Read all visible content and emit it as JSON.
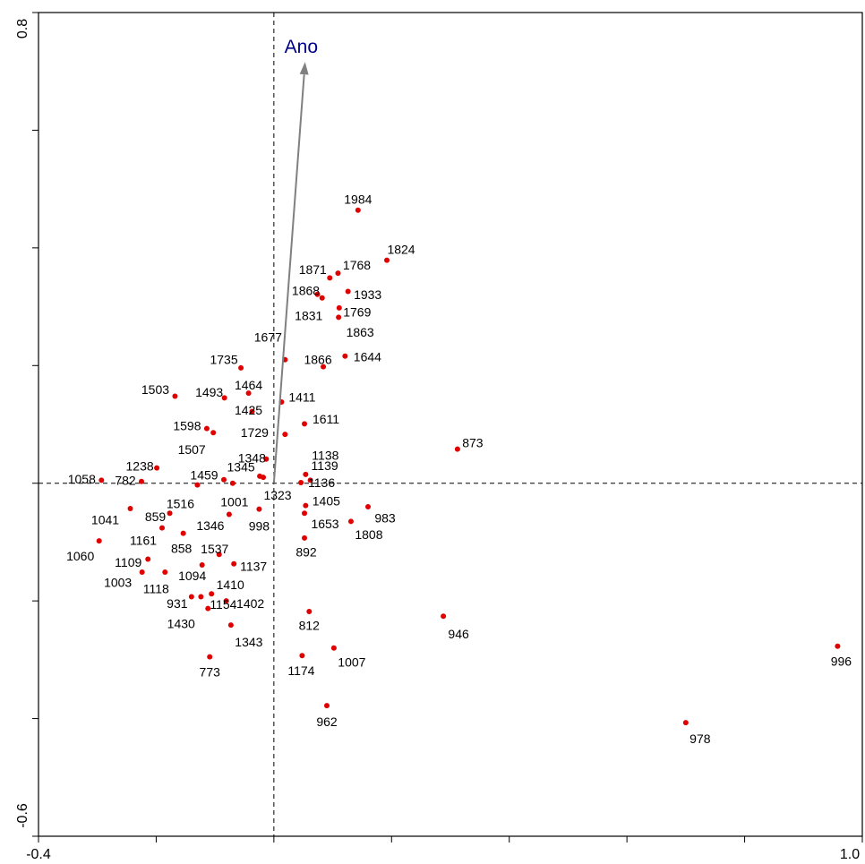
{
  "chart_data": {
    "type": "scatter",
    "title": "",
    "xlabel": "",
    "ylabel": "",
    "xlim": [
      -0.4,
      1.0
    ],
    "ylim": [
      -0.6,
      0.8
    ],
    "x_tick_labels": [
      "-0.4",
      "1.0"
    ],
    "y_tick_labels": [
      "-0.6",
      "0.8"
    ],
    "x_ticks": [
      -0.4,
      -0.2,
      0.0,
      0.2,
      0.4,
      0.6,
      0.8,
      1.0
    ],
    "y_ticks": [
      -0.6,
      -0.4,
      -0.2,
      0.0,
      0.2,
      0.4,
      0.6,
      0.8
    ],
    "grid": false,
    "reference_lines": {
      "x": 0.0,
      "y": 0.0,
      "style": "dashed"
    },
    "point_color": "#e00000",
    "arrow_color": "#808080",
    "arrow_label_color": "#00008b",
    "arrow": {
      "label": "Ano",
      "x": 0.053,
      "y": 0.716
    },
    "points": [
      {
        "label": "1984",
        "x": 0.143,
        "y": 0.464
      },
      {
        "label": "1824",
        "x": 0.192,
        "y": 0.379
      },
      {
        "label": "1768",
        "x": 0.109,
        "y": 0.357
      },
      {
        "label": "1871",
        "x": 0.095,
        "y": 0.349
      },
      {
        "label": "1868",
        "x": 0.074,
        "y": 0.321
      },
      {
        "label": "1933",
        "x": 0.126,
        "y": 0.326
      },
      {
        "label": "1831",
        "x": 0.082,
        "y": 0.315
      },
      {
        "label": "1769",
        "x": 0.111,
        "y": 0.298
      },
      {
        "label": "1863",
        "x": 0.11,
        "y": 0.282
      },
      {
        "label": "1677",
        "x": 0.019,
        "y": 0.21
      },
      {
        "label": "1644",
        "x": 0.121,
        "y": 0.216
      },
      {
        "label": "1866",
        "x": 0.084,
        "y": 0.198
      },
      {
        "label": "1735",
        "x": -0.056,
        "y": 0.196
      },
      {
        "label": "1493",
        "x": -0.084,
        "y": 0.145
      },
      {
        "label": "1464",
        "x": -0.043,
        "y": 0.153
      },
      {
        "label": "1503",
        "x": -0.168,
        "y": 0.148
      },
      {
        "label": "1411",
        "x": 0.013,
        "y": 0.138
      },
      {
        "label": "1425",
        "x": -0.037,
        "y": 0.122
      },
      {
        "label": "1611",
        "x": 0.052,
        "y": 0.101
      },
      {
        "label": "1598",
        "x": -0.114,
        "y": 0.093
      },
      {
        "label": "1507",
        "x": -0.103,
        "y": 0.086
      },
      {
        "label": "1729",
        "x": 0.019,
        "y": 0.083
      },
      {
        "label": "873",
        "x": 0.312,
        "y": 0.058
      },
      {
        "label": "1348",
        "x": -0.013,
        "y": 0.041
      },
      {
        "label": "1238",
        "x": -0.199,
        "y": 0.026
      },
      {
        "label": "1138",
        "x": 0.054,
        "y": 0.015
      },
      {
        "label": "1139",
        "x": 0.062,
        "y": 0.005
      },
      {
        "label": "1345",
        "x": -0.024,
        "y": 0.012
      },
      {
        "label": "1136",
        "x": 0.046,
        "y": 0.001
      },
      {
        "label": "1058",
        "x": -0.293,
        "y": 0.005
      },
      {
        "label": "782",
        "x": -0.225,
        "y": 0.003
      },
      {
        "label": "1459",
        "x": -0.085,
        "y": 0.006
      },
      {
        "label": "1516",
        "x": -0.13,
        "y": -0.003
      },
      {
        "label": "1001",
        "x": -0.07,
        "y": 0.0
      },
      {
        "label": "1323",
        "x": -0.018,
        "y": 0.01
      },
      {
        "label": "1405",
        "x": 0.054,
        "y": -0.038
      },
      {
        "label": "983",
        "x": 0.16,
        "y": -0.04
      },
      {
        "label": "1653",
        "x": 0.052,
        "y": -0.051
      },
      {
        "label": "1808",
        "x": 0.131,
        "y": -0.065
      },
      {
        "label": "998",
        "x": -0.025,
        "y": -0.044
      },
      {
        "label": "1346",
        "x": -0.076,
        "y": -0.053
      },
      {
        "label": "1041",
        "x": -0.244,
        "y": -0.043
      },
      {
        "label": "859",
        "x": -0.177,
        "y": -0.051
      },
      {
        "label": "1161",
        "x": -0.19,
        "y": -0.076
      },
      {
        "label": "858",
        "x": -0.154,
        "y": -0.085
      },
      {
        "label": "892",
        "x": 0.052,
        "y": -0.093
      },
      {
        "label": "1537",
        "x": -0.093,
        "y": -0.121
      },
      {
        "label": "1060",
        "x": -0.297,
        "y": -0.098
      },
      {
        "label": "1109",
        "x": -0.214,
        "y": -0.129
      },
      {
        "label": "1137",
        "x": -0.068,
        "y": -0.137
      },
      {
        "label": "1094",
        "x": -0.122,
        "y": -0.139
      },
      {
        "label": "1003",
        "x": -0.224,
        "y": -0.151
      },
      {
        "label": "1118",
        "x": -0.185,
        "y": -0.151
      },
      {
        "label": "1410",
        "x": -0.106,
        "y": -0.188
      },
      {
        "label": "931",
        "x": -0.14,
        "y": -0.193
      },
      {
        "label": "1402",
        "x": -0.081,
        "y": -0.2
      },
      {
        "label": "1154",
        "x": -0.124,
        "y": -0.193
      },
      {
        "label": "1430",
        "x": -0.112,
        "y": -0.213
      },
      {
        "label": "812",
        "x": 0.06,
        "y": -0.218
      },
      {
        "label": "946",
        "x": 0.288,
        "y": -0.226
      },
      {
        "label": "1343",
        "x": -0.073,
        "y": -0.241
      },
      {
        "label": "773",
        "x": -0.109,
        "y": -0.295
      },
      {
        "label": "1174",
        "x": 0.048,
        "y": -0.293
      },
      {
        "label": "1007",
        "x": 0.102,
        "y": -0.28
      },
      {
        "label": "996",
        "x": 0.958,
        "y": -0.277
      },
      {
        "label": "962",
        "x": 0.09,
        "y": -0.378
      },
      {
        "label": "978",
        "x": 0.7,
        "y": -0.407
      }
    ]
  }
}
